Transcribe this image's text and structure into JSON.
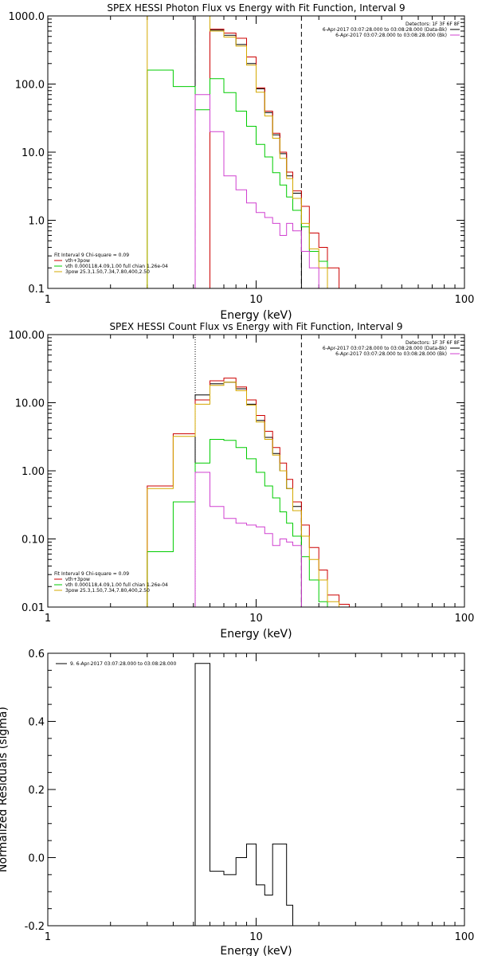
{
  "panels": [
    {
      "title": "SPEX HESSI Photon Flux vs Energy with Fit Function, Interval 9",
      "xlabel": "Energy (keV)",
      "ylabel": "",
      "legend_tr": {
        "detectors": "Detectors: 1F 3F 6F 8F",
        "entries": [
          {
            "text": "6-Apr-2017 03:07:28.000 to 03:08:28.000 (Data-Bk)",
            "color": "#000000"
          },
          {
            "text": "6-Apr-2017 03:07:28.000 to 03:08:28.000 (Bk)",
            "color": "#d040d0"
          }
        ]
      },
      "legend_bl": {
        "header": "Fit Interval  9    Chi-square = 0.09",
        "entries": [
          {
            "text": "vth+3pow",
            "color": "#cc0000"
          },
          {
            "text": "vth  0.000118,4.09,1.00   full chian 1.26e-04",
            "color": "#00cc00"
          },
          {
            "text": "3pow  25.3,1.50,7.34,7.80,400,2.50",
            "color": "#d4a800"
          }
        ]
      },
      "chart_data": {
        "type": "line",
        "xscale": "log",
        "yscale": "log",
        "xlim": [
          1,
          100
        ],
        "ylim": [
          0.1,
          1000
        ],
        "xticks": [
          1,
          10,
          100
        ],
        "xtick_labels": [
          "1",
          "10",
          "100"
        ],
        "yticks": [
          0.1,
          1,
          10,
          100,
          1000
        ],
        "ytick_labels": [
          "0.1",
          "1.0",
          "10.0",
          "100.0",
          "1000.0"
        ],
        "vlines": [
          {
            "x": 5.1,
            "style": "dashed",
            "color": "#d040d0"
          },
          {
            "x": 16.5,
            "style": "dashed",
            "color": "#000000"
          }
        ],
        "edges": [
          3,
          4,
          5.1,
          6,
          7,
          8,
          9,
          10,
          11,
          12,
          13,
          14,
          15,
          16.5,
          18,
          20,
          22,
          25
        ],
        "series": [
          {
            "name": "",
            "color": "#000000",
            "values": [
              null,
              null,
              1000,
              620,
              520,
              380,
              200,
              85,
              38,
              18,
              9.5,
              4.5,
              2.5,
              null,
              null,
              null,
              null
            ]
          },
          {
            "name": "",
            "color": "#cc0000",
            "values": [
              null,
              null,
              null,
              640,
              560,
              470,
              250,
              88,
              40,
              19,
              10,
              5.1,
              2.7,
              1.6,
              0.65,
              0.4,
              0.2
            ]
          },
          {
            "name": "",
            "color": "#00cc00",
            "values": [
              160,
              92,
              42,
              120,
              75,
              40,
              24,
              13,
              8.5,
              5.0,
              3.3,
              2.2,
              1.4,
              0.8,
              0.35,
              0.25,
              0.1
            ]
          },
          {
            "name": "",
            "color": "#d4a800",
            "values": [
              1000,
              1000,
              1000,
              600,
              490,
              360,
              190,
              76,
              34,
              16,
              8.1,
              4.1,
              2.1,
              0.9,
              0.38,
              0.2,
              0.1
            ]
          },
          {
            "name": "",
            "color": "#d040d0",
            "values": [
              null,
              null,
              70,
              20,
              4.5,
              2.8,
              1.8,
              1.3,
              1.1,
              0.9,
              0.6,
              0.9,
              0.7,
              0.35,
              0.2,
              null,
              null
            ]
          }
        ]
      }
    },
    {
      "title": "SPEX HESSI Count Flux vs Energy with Fit Function, Interval 9",
      "xlabel": "Energy (keV)",
      "ylabel": "",
      "legend_tr": {
        "detectors": "Detectors: 1F 3F 6F 8F",
        "entries": [
          {
            "text": "6-Apr-2017 03:07:28.000 to 03:08:28.000 (Data-Bk)",
            "color": "#000000"
          },
          {
            "text": "6-Apr-2017 03:07:28.000 to 03:08:28.000 (Bk)",
            "color": "#d040d0"
          }
        ]
      },
      "legend_bl": {
        "header": "Fit Interval  9    Chi-square = 0.09",
        "entries": [
          {
            "text": "vth+3pow",
            "color": "#cc0000"
          },
          {
            "text": "vth  0.000118,4.09,1.00   full chian 1.26e-04",
            "color": "#00cc00"
          },
          {
            "text": "3pow  25.3,1.50,7.34,7.80,400,2.50",
            "color": "#d4a800"
          }
        ]
      },
      "chart_data": {
        "type": "line",
        "xscale": "log",
        "yscale": "log",
        "xlim": [
          1,
          100
        ],
        "ylim": [
          0.01,
          100
        ],
        "xticks": [
          1,
          10,
          100
        ],
        "xtick_labels": [
          "1",
          "10",
          "100"
        ],
        "yticks": [
          0.01,
          0.1,
          1,
          10,
          100
        ],
        "ytick_labels": [
          "0.01",
          "0.10",
          "1.00",
          "10.00",
          "100.00"
        ],
        "vlines": [
          {
            "x": 5.1,
            "style": "dotted",
            "color": "#000000"
          },
          {
            "x": 16.5,
            "style": "dashed",
            "color": "#000000"
          }
        ],
        "edges": [
          3,
          4,
          5.1,
          6,
          7,
          8,
          9,
          10,
          11,
          12,
          13,
          14,
          15,
          16.5,
          18,
          20,
          22,
          25,
          28
        ],
        "series": [
          {
            "name": "",
            "color": "#000000",
            "values": [
              null,
              null,
              13,
              19,
              20,
              16,
              9.5,
              5.5,
              3.1,
              1.8,
              1.0,
              0.55,
              0.3,
              null,
              null,
              null,
              null,
              null
            ]
          },
          {
            "name": "",
            "color": "#cc0000",
            "values": [
              0.6,
              3.5,
              11,
              21,
              23,
              17,
              11,
              6.5,
              3.8,
              2.2,
              1.3,
              0.75,
              0.35,
              0.16,
              0.075,
              0.035,
              0.015,
              0.011
            ]
          },
          {
            "name": "",
            "color": "#00cc00",
            "values": [
              0.065,
              0.35,
              1.3,
              2.9,
              2.8,
              2.2,
              1.5,
              0.95,
              0.6,
              0.4,
              0.25,
              0.17,
              0.11,
              0.055,
              0.025,
              0.012,
              0.008,
              null
            ]
          },
          {
            "name": "",
            "color": "#d4a800",
            "values": [
              0.55,
              3.2,
              9.5,
              18,
              20,
              15,
              9.2,
              5.2,
              2.9,
              1.7,
              1.0,
              0.55,
              0.26,
              0.11,
              0.05,
              0.025,
              0.012,
              null
            ]
          },
          {
            "name": "",
            "color": "#d040d0",
            "values": [
              null,
              null,
              0.95,
              0.3,
              0.2,
              0.17,
              0.16,
              0.15,
              0.12,
              0.08,
              0.1,
              0.09,
              0.08,
              null,
              null,
              null,
              null,
              null
            ]
          }
        ]
      }
    },
    {
      "title": "",
      "xlabel": "Energy (keV)",
      "ylabel": "Normalized Residuals (sigma)",
      "legend_tr": null,
      "legend_bl": null,
      "legend_tl": {
        "text": "9.  6-Apr-2017 03:07:28.000 to 03:08:28.000",
        "color": "#000000"
      },
      "chart_data": {
        "type": "line",
        "xscale": "log",
        "yscale": "linear",
        "xlim": [
          1,
          100
        ],
        "ylim": [
          -0.2,
          0.6
        ],
        "xticks": [
          1,
          10,
          100
        ],
        "xtick_labels": [
          "1",
          "10",
          "100"
        ],
        "yticks": [
          -0.2,
          0,
          0.2,
          0.4,
          0.6
        ],
        "ytick_labels": [
          "-0.2",
          "0.0",
          "0.2",
          "0.4",
          "0.6"
        ],
        "vlines": [],
        "edges": [
          5.1,
          6,
          7,
          8,
          9,
          10,
          11,
          12,
          13,
          14,
          15,
          16.5
        ],
        "series": [
          {
            "name": "",
            "color": "#000000",
            "values": [
              0.57,
              -0.04,
              -0.05,
              0.0,
              0.04,
              -0.08,
              -0.11,
              0.04,
              0.04,
              -0.14,
              -0.2
            ]
          }
        ]
      }
    }
  ]
}
